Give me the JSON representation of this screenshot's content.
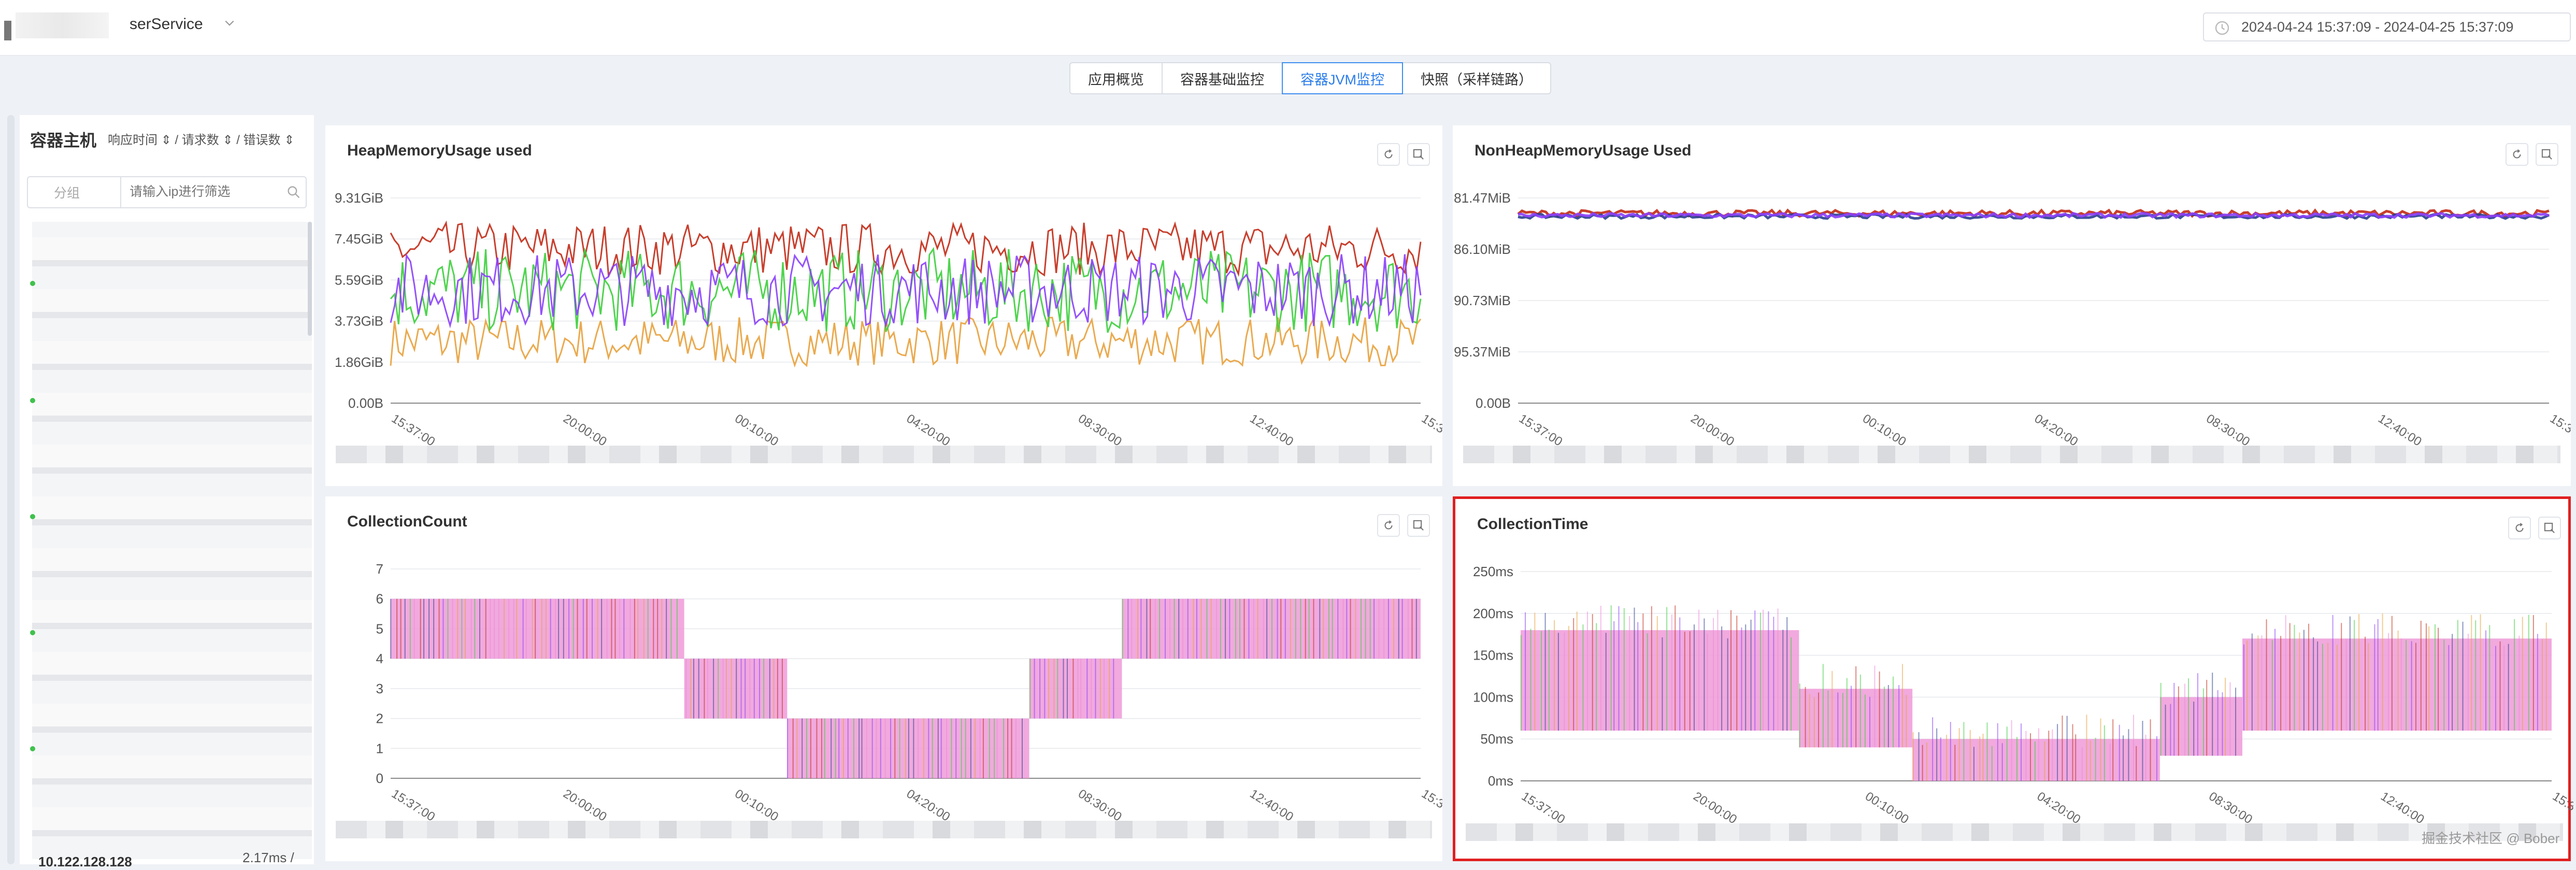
{
  "header": {
    "service_name": "serService",
    "date_range": "2024-04-24 15:37:09 - 2024-04-25 15:37:09"
  },
  "tabs": [
    {
      "label": "应用概览",
      "active": false
    },
    {
      "label": "容器基础监控",
      "active": false
    },
    {
      "label": "容器JVM监控",
      "active": true
    },
    {
      "label": "快照（采样链路）",
      "active": false
    }
  ],
  "sidebar": {
    "title": "容器主机",
    "sort_options": "响应时间 ⇕ / 请求数 ⇕ / 错误数 ⇕",
    "group_label": "分组",
    "search_placeholder": "请输入ip进行筛选",
    "last_item_ip": "10.122.128.128",
    "last_item_value": "2.17ms /"
  },
  "x_ticks": [
    "15:37:00",
    "20:00:00",
    "00:10:00",
    "04:20:00",
    "08:30:00",
    "12:40:00",
    "15:3"
  ],
  "colors": {
    "accent": "#2b7de9",
    "highlight": "#e02020",
    "series": [
      "#8a3ffc",
      "#e8a13c",
      "#c22a16",
      "#3ccf3c",
      "#ef8ad8",
      "#2a3f8f"
    ]
  },
  "watermark": "掘金技术社区 @ Bober",
  "charts": [
    {
      "title": "HeapMemoryUsage used",
      "buttons": [
        "refresh-icon",
        "zoom-reset-icon"
      ],
      "chart_data": {
        "type": "line",
        "title": "HeapMemoryUsage used",
        "y_ticks": [
          "0.00B",
          "1.86GiB",
          "3.73GiB",
          "5.59GiB",
          "7.45GiB",
          "9.31GiB"
        ],
        "ylim": [
          0,
          9.31
        ],
        "unit": "GiB",
        "bands": [
          {
            "color": "#e8a13c",
            "low": 1.7,
            "high": 3.9
          },
          {
            "color": "#c22a16",
            "low": 5.8,
            "high": 8.2
          },
          {
            "color": "#3ccf3c",
            "low": 3.2,
            "high": 7.0
          },
          {
            "color": "#8a3ffc",
            "low": 3.5,
            "high": 6.8
          }
        ]
      }
    },
    {
      "title": "NonHeapMemoryUsage Used",
      "buttons": [
        "refresh-icon",
        "zoom-reset-icon"
      ],
      "chart_data": {
        "type": "line",
        "title": "NonHeapMemoryUsage Used",
        "y_ticks": [
          "0.00B",
          "95.37MiB",
          "90.73MiB",
          "86.10MiB",
          "81.47MiB"
        ],
        "bands": [
          {
            "color": "#c22a16",
            "low": 0.91,
            "high": 0.94
          },
          {
            "color": "#2a3f8f",
            "low": 0.9,
            "high": 0.92
          },
          {
            "color": "#8a3ffc",
            "low": 0.905,
            "high": 0.925
          }
        ]
      }
    },
    {
      "title": "CollectionCount",
      "buttons": [
        "refresh-icon",
        "zoom-reset-icon"
      ],
      "chart_data": {
        "type": "line",
        "title": "CollectionCount",
        "y_ticks": [
          "0",
          "1",
          "2",
          "3",
          "4",
          "5",
          "6",
          "7"
        ],
        "ylim": [
          0,
          7
        ],
        "segments": [
          {
            "x0": 0,
            "x1": 0.285,
            "low": 4,
            "high": 6
          },
          {
            "x0": 0.285,
            "x1": 0.385,
            "low": 2,
            "high": 4
          },
          {
            "x0": 0.385,
            "x1": 0.62,
            "low": 0,
            "high": 2
          },
          {
            "x0": 0.62,
            "x1": 0.71,
            "low": 2,
            "high": 4
          },
          {
            "x0": 0.71,
            "x1": 1,
            "low": 4,
            "high": 6
          }
        ]
      }
    },
    {
      "title": "CollectionTime",
      "buttons": [
        "refresh-icon",
        "zoom-reset-icon"
      ],
      "highlighted": true,
      "chart_data": {
        "type": "line",
        "title": "CollectionTime",
        "y_ticks": [
          "0ms",
          "50ms",
          "100ms",
          "150ms",
          "200ms",
          "250ms"
        ],
        "ylim": [
          0,
          250
        ],
        "segments": [
          {
            "x0": 0,
            "x1": 0.27,
            "low": 60,
            "high": 180
          },
          {
            "x0": 0.27,
            "x1": 0.38,
            "low": 40,
            "high": 110
          },
          {
            "x0": 0.38,
            "x1": 0.62,
            "low": 0,
            "high": 50
          },
          {
            "x0": 0.62,
            "x1": 0.7,
            "low": 30,
            "high": 100
          },
          {
            "x0": 0.7,
            "x1": 1,
            "low": 60,
            "high": 170
          }
        ]
      }
    }
  ]
}
